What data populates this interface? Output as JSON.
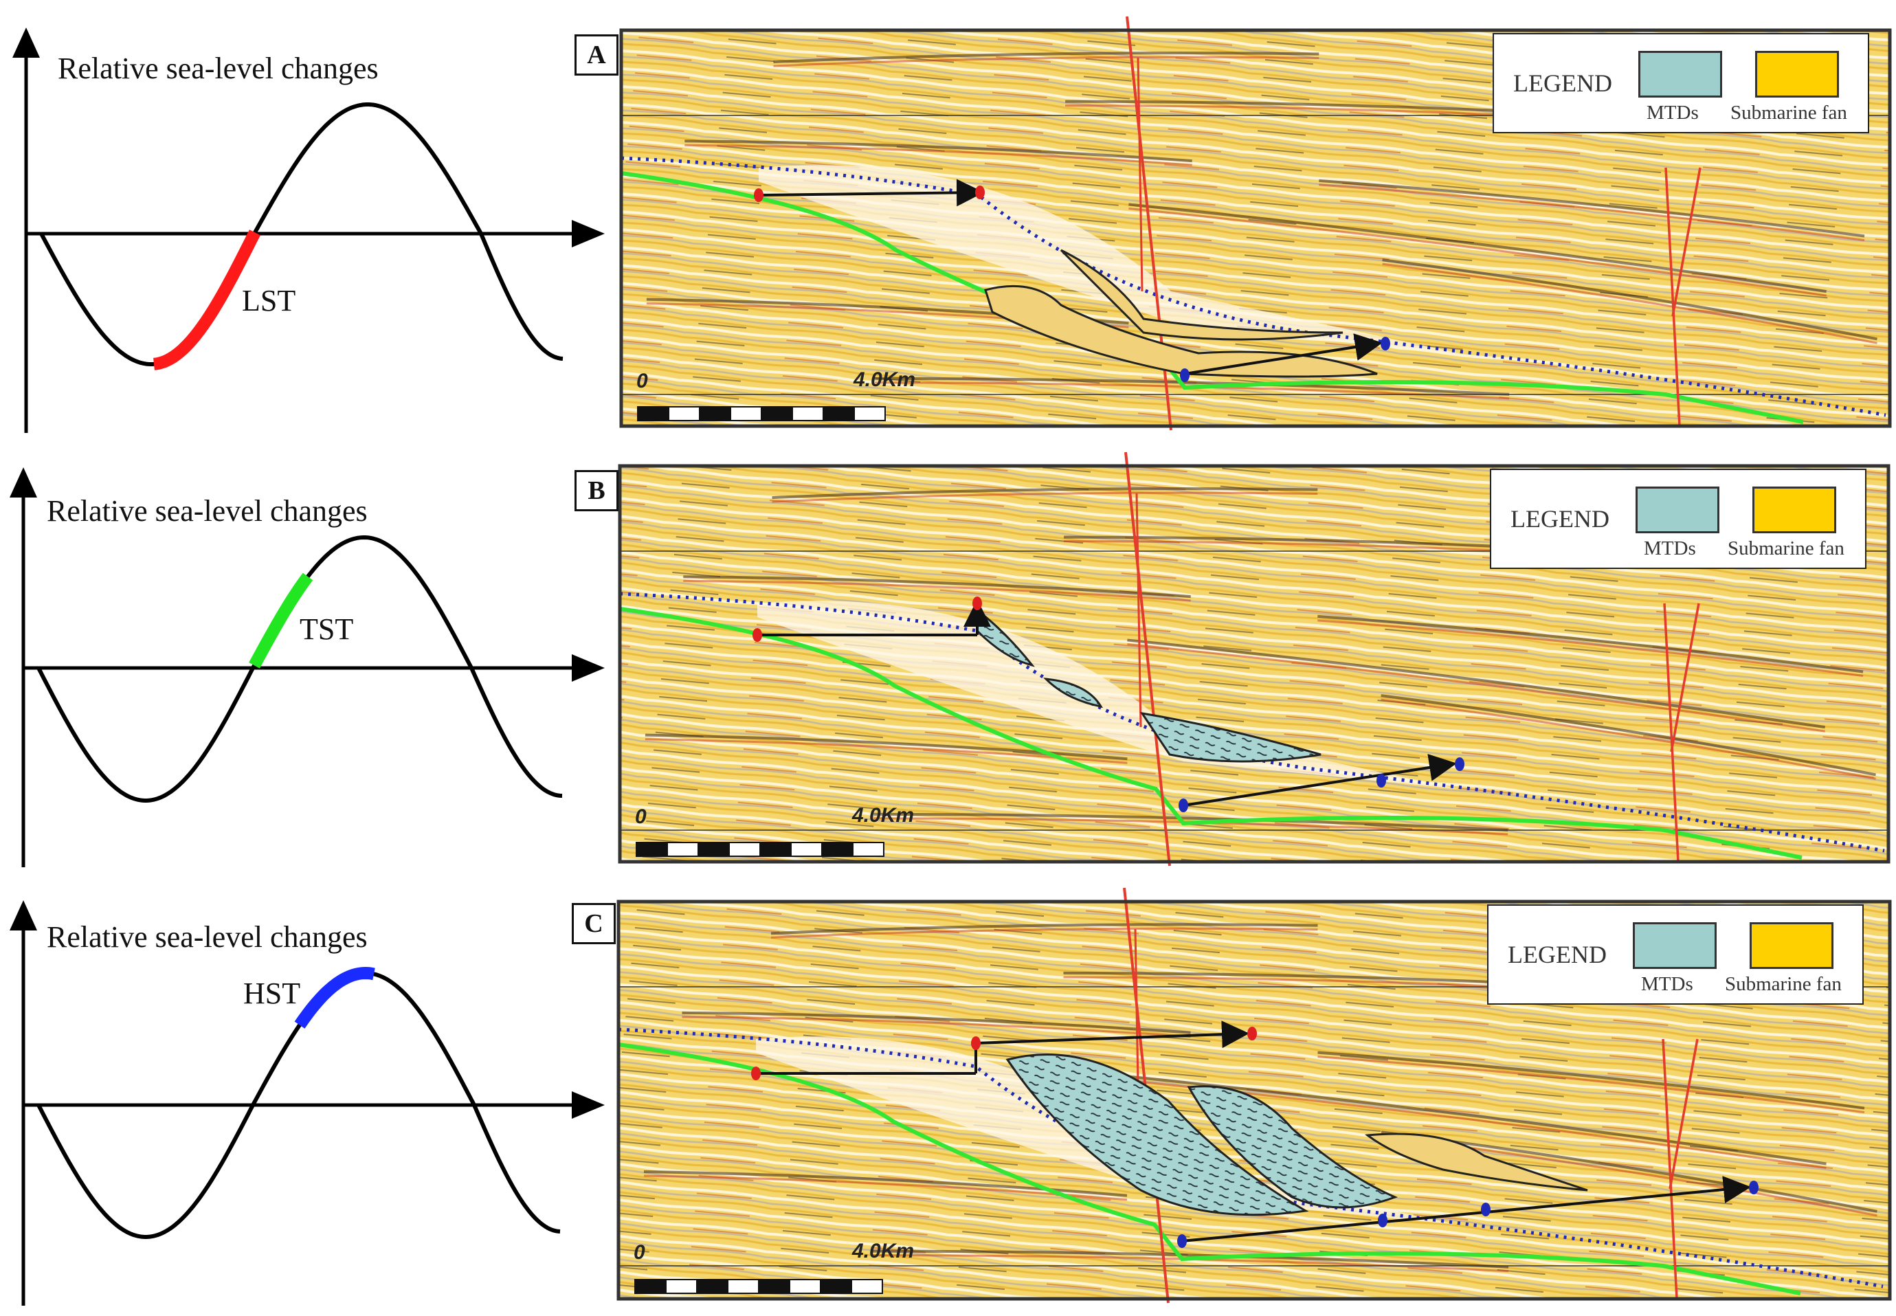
{
  "panels": [
    {
      "id": "A",
      "stage": "LST",
      "stage_color": "#ff1a1a"
    },
    {
      "id": "B",
      "stage": "TST",
      "stage_color": "#22e622"
    },
    {
      "id": "C",
      "stage": "HST",
      "stage_color": "#1a2bff"
    }
  ],
  "curve_caption": "Relative sea-level changes",
  "legend": {
    "title": "LEGEND",
    "items": [
      {
        "label": "MTDs",
        "color": "#9ecfcd"
      },
      {
        "label": "Submarine fan",
        "color": "#ffd000"
      }
    ]
  },
  "scale": {
    "start": "0",
    "end": "4.0Km"
  },
  "colors": {
    "seismic_background": "#f3d36a",
    "fault": "#e33b2c",
    "green_surface": "#33e633",
    "blue_surface": "#1f2bb8",
    "arrow": "#111111"
  }
}
